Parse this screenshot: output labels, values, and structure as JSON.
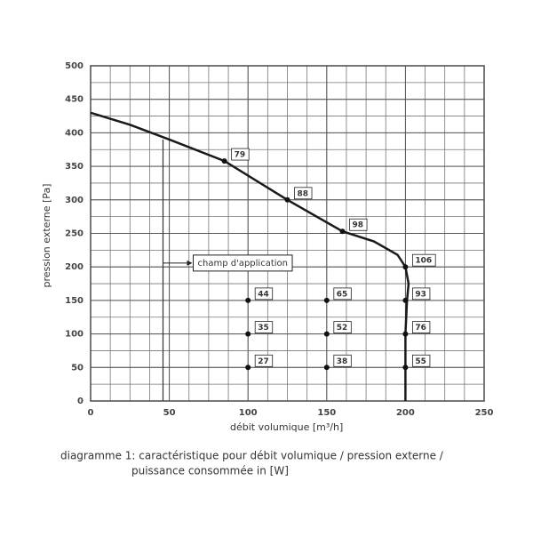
{
  "chart_data": {
    "type": "line",
    "xlabel": "débit volumique [m³/h]",
    "ylabel": "pression externe [Pa]",
    "xlim": [
      0,
      250
    ],
    "ylim": [
      0,
      500
    ],
    "xticks": [
      0,
      50,
      100,
      150,
      200,
      250
    ],
    "yticks": [
      0,
      50,
      100,
      150,
      200,
      250,
      300,
      350,
      400,
      450,
      500
    ],
    "grid": true,
    "grid_x_step": 12.5,
    "grid_y_step": 25,
    "color": "#1a1a1a",
    "x": [
      0,
      25,
      50,
      85,
      125,
      160,
      180,
      195,
      200,
      202,
      201,
      200,
      200,
      200
    ],
    "values": [
      430,
      412,
      390,
      358,
      300,
      253,
      238,
      218,
      200,
      175,
      150,
      100,
      50,
      0
    ],
    "markers": [
      {
        "x": 85,
        "y": 358,
        "power": 79
      },
      {
        "x": 125,
        "y": 300,
        "power": 88
      },
      {
        "x": 160,
        "y": 253,
        "power": 98
      },
      {
        "x": 200,
        "y": 200,
        "power": 106
      },
      {
        "x": 200,
        "y": 150,
        "power": 93
      },
      {
        "x": 200,
        "y": 100,
        "power": 76
      },
      {
        "x": 200,
        "y": 50,
        "power": 55
      },
      {
        "x": 100,
        "y": 150,
        "power": 44
      },
      {
        "x": 100,
        "y": 100,
        "power": 35
      },
      {
        "x": 100,
        "y": 50,
        "power": 27
      },
      {
        "x": 150,
        "y": 150,
        "power": 65
      },
      {
        "x": 150,
        "y": 100,
        "power": 52
      },
      {
        "x": 150,
        "y": 50,
        "power": 38
      }
    ],
    "application_x": 46,
    "application_top": 390,
    "annotation": {
      "text": "champ d'application",
      "y": 215
    },
    "caption": [
      "diagramme 1: caractéristique pour débit volumique / pression externe /",
      "puissance consommée in [W]"
    ]
  }
}
